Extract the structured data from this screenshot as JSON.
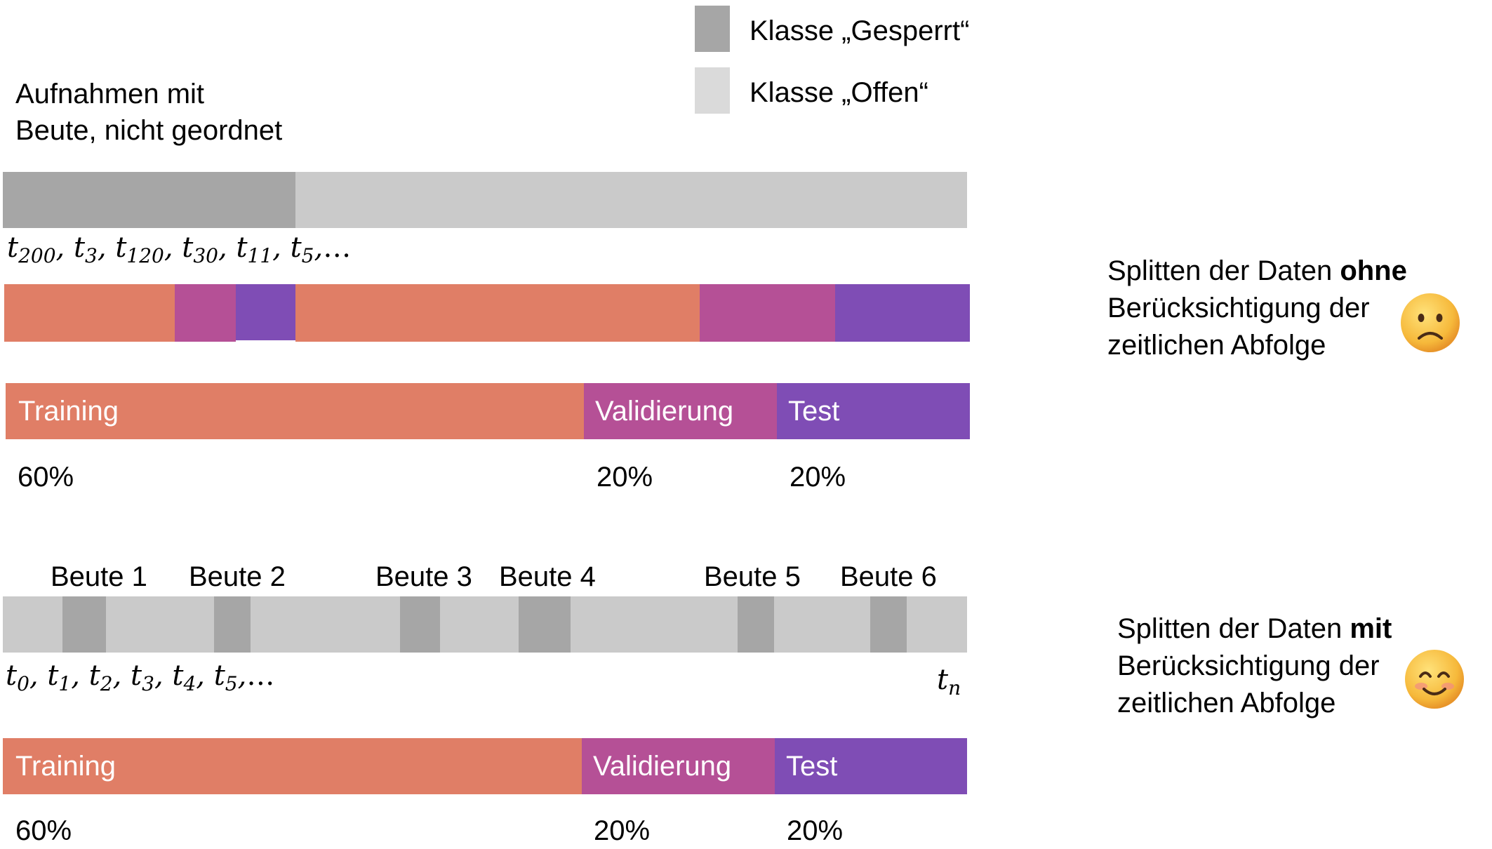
{
  "colors": {
    "gesperrt": "#a6a6a6",
    "offen": "#cacaca",
    "legend_offen": "#dadada",
    "training": "#e07e66",
    "validierung": "#b55096",
    "test": "#7f4db5"
  },
  "legend": {
    "gesperrt": "Klasse „Gesperrt“",
    "offen": "Klasse „Offen“"
  },
  "top": {
    "heading_line1": "Aufnahmen mit",
    "heading_line2": "Beute, nicht geordnet",
    "time_sequence": [
      {
        "base": "t",
        "sub": "200"
      },
      {
        "base": "t",
        "sub": "3"
      },
      {
        "base": "t",
        "sub": "120"
      },
      {
        "base": "t",
        "sub": "30"
      },
      {
        "base": "t",
        "sub": "11"
      },
      {
        "base": "t",
        "sub": "5"
      }
    ],
    "time_ellipsis": "…",
    "split_bar": {
      "training": "Training",
      "validierung": "Validierung",
      "test": "Test"
    },
    "percentages": {
      "training": "60%",
      "validierung": "20%",
      "test": "20%"
    },
    "note": {
      "line1_prefix": "Splitten der Daten ",
      "line1_bold": "ohne",
      "line2": "Berücksichtigung der",
      "line3": "zeitlichen Abfolge"
    },
    "emoji": "frowning-face"
  },
  "bottom": {
    "beute_labels": [
      "Beute 1",
      "Beute 2",
      "Beute 3",
      "Beute 4",
      "Beute 5",
      "Beute 6"
    ],
    "time_sequence": [
      {
        "base": "t",
        "sub": "0"
      },
      {
        "base": "t",
        "sub": "1"
      },
      {
        "base": "t",
        "sub": "2"
      },
      {
        "base": "t",
        "sub": "3"
      },
      {
        "base": "t",
        "sub": "4"
      },
      {
        "base": "t",
        "sub": "5"
      }
    ],
    "time_ellipsis": "…",
    "time_end": {
      "base": "t",
      "sub": "n"
    },
    "split_bar": {
      "training": "Training",
      "validierung": "Validierung",
      "test": "Test"
    },
    "percentages": {
      "training": "60%",
      "validierung": "20%",
      "test": "20%"
    },
    "note": {
      "line1_prefix": "Splitten der Daten ",
      "line1_bold": "mit",
      "line2": "Berücksichtigung der",
      "line3": "zeitlichen Abfolge"
    },
    "emoji": "smiling-face"
  }
}
